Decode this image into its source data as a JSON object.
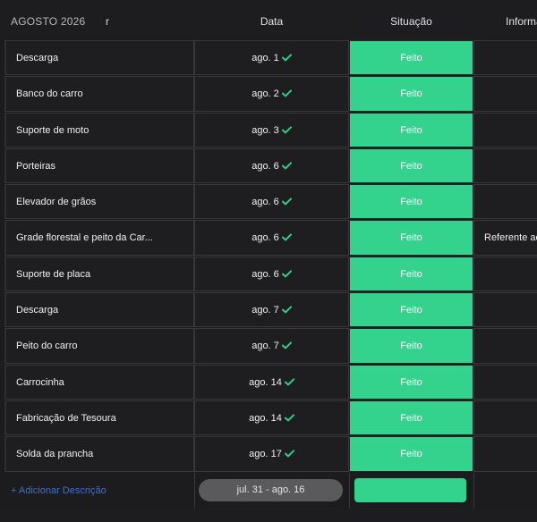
{
  "header": {
    "group_title": "AGOSTO 2026",
    "ghost_suffix": "r",
    "columns": {
      "date": "Data",
      "status": "Situação",
      "info": "Informa"
    }
  },
  "rows": [
    {
      "name": "Descarga",
      "date": "ago. 1",
      "status": "Feito",
      "info": ""
    },
    {
      "name": "Banco do carro",
      "date": "ago. 2",
      "status": "Feito",
      "info": ""
    },
    {
      "name": "Suporte de moto",
      "date": "ago. 3",
      "status": "Feito",
      "info": ""
    },
    {
      "name": "Porteiras",
      "date": "ago. 6",
      "status": "Feito",
      "info": ""
    },
    {
      "name": "Elevador de grãos",
      "date": "ago. 6",
      "status": "Feito",
      "info": ""
    },
    {
      "name": "Grade florestal e peito da Car...",
      "date": "ago. 6",
      "status": "Feito",
      "info": "Referente ac"
    },
    {
      "name": "Suporte de placa",
      "date": "ago. 6",
      "status": "Feito",
      "info": ""
    },
    {
      "name": "Descarga",
      "date": "ago. 7",
      "status": "Feito",
      "info": ""
    },
    {
      "name": "Peito do carro",
      "date": "ago. 7",
      "status": "Feito",
      "info": ""
    },
    {
      "name": "Carrocinha",
      "date": "ago. 14",
      "status": "Feito",
      "info": ""
    },
    {
      "name": "Fabricação de Tesoura",
      "date": "ago. 14",
      "status": "Feito",
      "info": ""
    },
    {
      "name": "Solda da prancha",
      "date": "ago. 17",
      "status": "Feito",
      "info": ""
    }
  ],
  "footer": {
    "add_label": "+ Adicionar Descrição",
    "date_range": "jul. 31 - ago. 16"
  },
  "colors": {
    "status_done": "#33d38e",
    "check": "#2fcf84",
    "link": "#3f6fd4"
  },
  "icons": {
    "date_done": "check-icon"
  }
}
